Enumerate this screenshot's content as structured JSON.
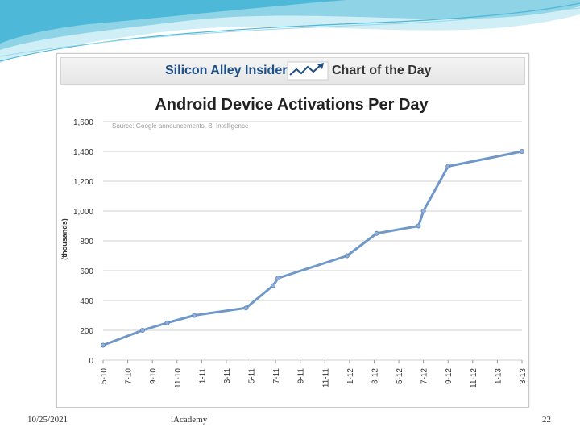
{
  "banner": {
    "left": "Silicon Alley Insider",
    "right": "Chart of the Day"
  },
  "footer": {
    "date": "10/25/2021",
    "center": "iAcademy",
    "page": "22"
  },
  "colors": {
    "line": "#6f98c8",
    "marker": "#8fb1d9",
    "grid": "#cfcfcf",
    "brand": "#1e4f86",
    "slide_accent": "#4db8d8"
  },
  "chart_data": {
    "type": "line",
    "title": "Android Device Activations Per Day",
    "source": "Source: Google announcements, BI Intelligence",
    "xlabel": "",
    "ylabel": "(thousands)",
    "ylim": [
      0,
      1600
    ],
    "yticks": [
      "0",
      "200",
      "400",
      "600",
      "800",
      "1,000",
      "1,200",
      "1,400",
      "1,600"
    ],
    "xticks": [
      "5-10",
      "7-10",
      "9-10",
      "11-10",
      "1-11",
      "3-11",
      "5-11",
      "7-11",
      "9-11",
      "11-11",
      "1-12",
      "3-12",
      "5-12",
      "7-12",
      "9-12",
      "11-12",
      "1-13",
      "3-13"
    ],
    "grid": true,
    "series": [
      {
        "values": [
          [
            0,
            100
          ],
          [
            1.6,
            200
          ],
          [
            2.6,
            250
          ],
          [
            3.7,
            300
          ],
          [
            5.8,
            350
          ],
          [
            6.9,
            500
          ],
          [
            7.1,
            550
          ],
          [
            9.9,
            700
          ],
          [
            11.1,
            850
          ],
          [
            12.8,
            900
          ],
          [
            13.0,
            1000
          ],
          [
            14.0,
            1300
          ],
          [
            17.0,
            1400
          ]
        ]
      }
    ]
  }
}
